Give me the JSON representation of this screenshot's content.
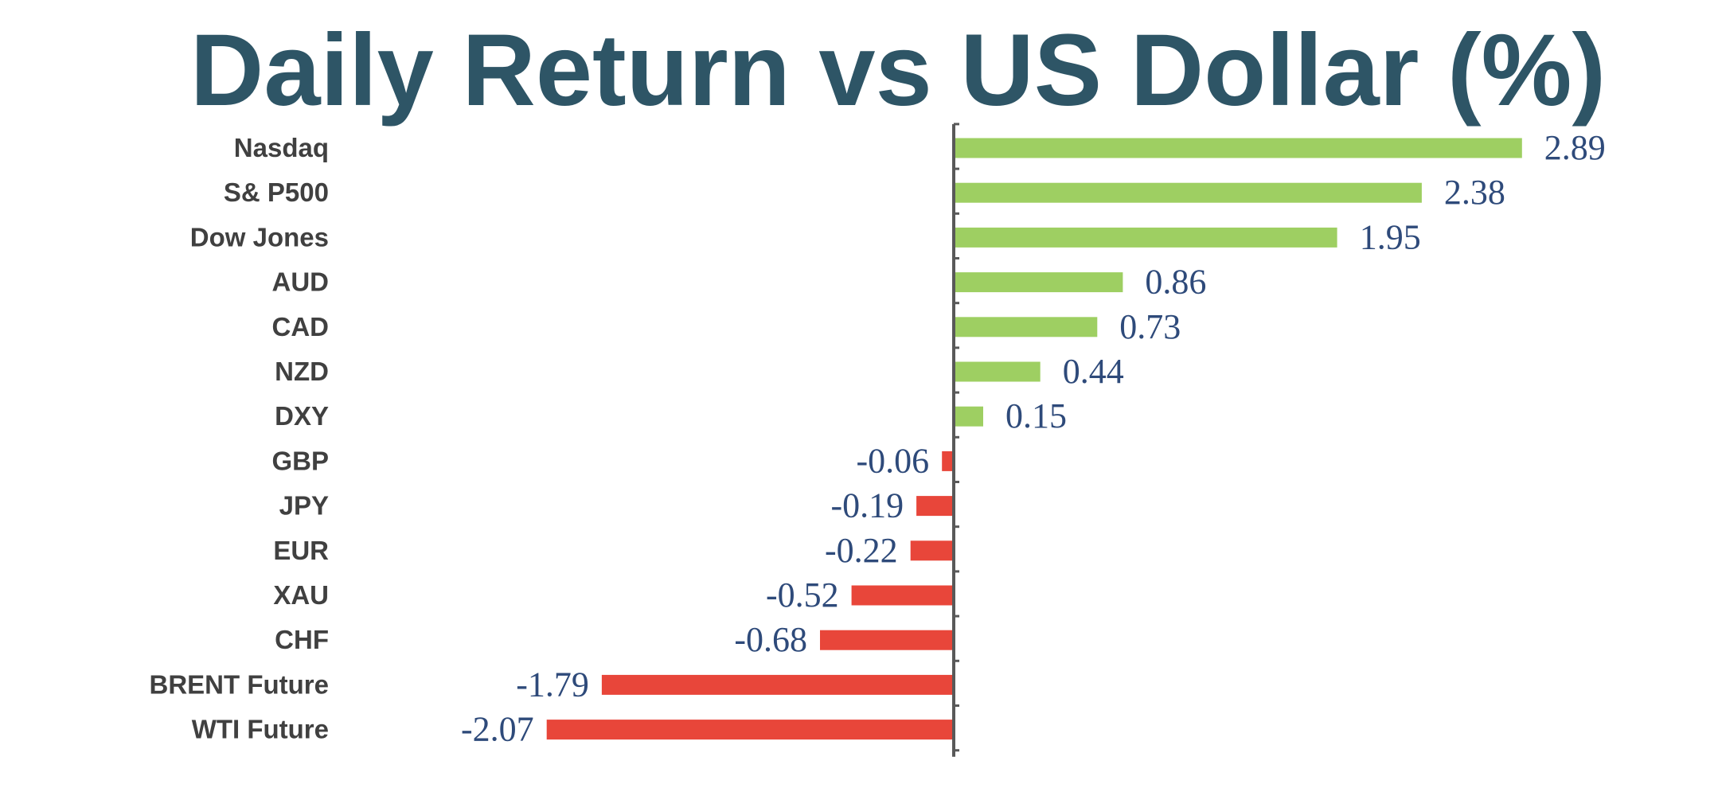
{
  "chart_data": {
    "type": "bar",
    "orientation": "horizontal",
    "title": "Daily Return vs US Dollar (%)",
    "xlabel": "",
    "ylabel": "",
    "categories": [
      "Nasdaq",
      "S& P500",
      "Dow Jones",
      "AUD",
      "CAD",
      "NZD",
      "DXY",
      "GBP",
      "JPY",
      "EUR",
      "XAU",
      "CHF",
      "BRENT Future",
      "WTI Future"
    ],
    "values": [
      2.89,
      2.38,
      1.95,
      0.86,
      0.73,
      0.44,
      0.15,
      -0.06,
      -0.19,
      -0.22,
      -0.52,
      -0.68,
      -1.79,
      -2.07
    ],
    "value_labels": [
      "2.89",
      "2.38",
      "1.95",
      "0.86",
      "0.73",
      "0.44",
      "0.15",
      "-0.06",
      "-0.19",
      "-0.22",
      "-0.52",
      "-0.68",
      "-1.79",
      "-2.07"
    ],
    "xlim": [
      -2.2,
      3.5
    ],
    "grid": false,
    "legend": "none",
    "colors": {
      "positive": "#9ecf62",
      "negative": "#e8463a",
      "axis": "#595959",
      "title": "#2e5566",
      "category_text": "#404040",
      "value_text": "#2e4a7a"
    }
  }
}
